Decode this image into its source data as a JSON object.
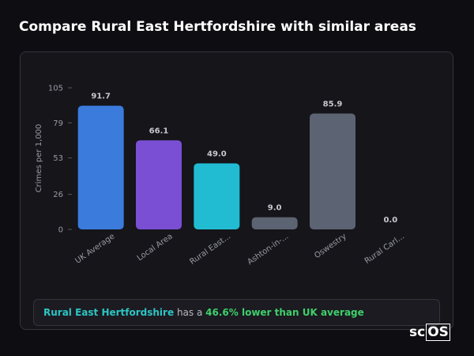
{
  "header": {
    "title": "Compare Rural East Hertfordshire with similar areas"
  },
  "chart_data": {
    "type": "bar",
    "y_label": "Crimes per 1,000",
    "categories": [
      "UK Average",
      "Local Area",
      "Rural East...",
      "Ashton-in-...",
      "Oswestry",
      "Rural Carl..."
    ],
    "values": [
      91.7,
      66.1,
      49.0,
      9.0,
      85.9,
      0.0
    ],
    "value_labels": [
      "91.7",
      "66.1",
      "49.0",
      "9.0",
      "85.9",
      "0.0"
    ],
    "colors": [
      "#3a7bdc",
      "#7a4fd4",
      "#21bcd2",
      "#5c6372",
      "#5c6372",
      "#5c6372"
    ],
    "ylim": [
      0,
      105
    ],
    "yticks": [
      0,
      26,
      53,
      79,
      105
    ]
  },
  "summary": {
    "place": "Rural East Hertfordshire",
    "middle": "has a",
    "comparison": "46.6% lower than UK average"
  },
  "logo": {
    "text": "sc",
    "boxed": "OS"
  }
}
